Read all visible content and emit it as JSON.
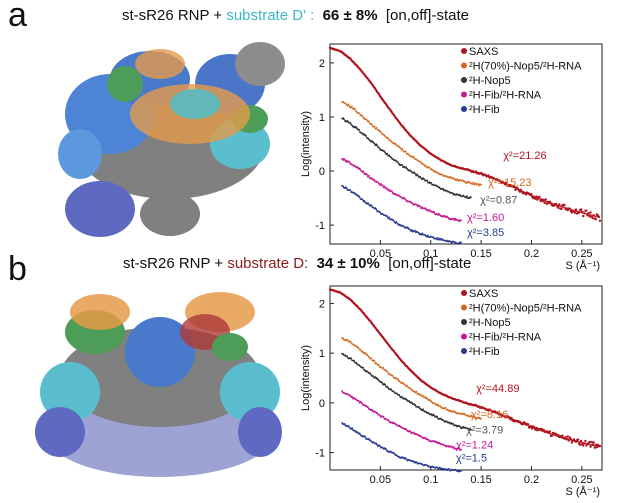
{
  "panels": [
    {
      "letter": "a",
      "title": {
        "prefix": "st-sR26 RNP + ",
        "substrate": "substrate D' :",
        "percent": "66 ± 8%",
        "state": "[on,off]-state"
      },
      "colors": {
        "substrate": "#3ab7c8"
      }
    },
    {
      "letter": "b",
      "title": {
        "prefix": "st-sR26 RNP + ",
        "substrate": "substrate D:",
        "percent": "34 ± 10%",
        "state": "[on,off]-state"
      },
      "colors": {
        "substrate": "#8b1a1a"
      }
    }
  ],
  "chart_data": [
    {
      "type": "scatter",
      "panel": "a",
      "xlabel": "S (Å⁻¹)",
      "ylabel": "Log(intensity)",
      "xlim": [
        0,
        0.27
      ],
      "ylim": [
        -1.35,
        2.35
      ],
      "xticks": [
        0.05,
        0.1,
        0.15,
        0.2,
        0.25
      ],
      "xtick_labels": [
        "0.05",
        "0.1",
        "0.15",
        "0.2",
        "0.25"
      ],
      "yticks": [
        2,
        1,
        0,
        -1
      ],
      "ytick_labels": [
        "2",
        "1",
        "0",
        "-1"
      ],
      "legend_position": "top-right",
      "series": [
        {
          "name": "SAXS",
          "color": "#b0141e",
          "x": [
            0.0,
            0.01,
            0.02,
            0.03,
            0.04,
            0.05,
            0.06,
            0.07,
            0.08,
            0.09,
            0.1,
            0.11,
            0.12,
            0.13,
            0.14,
            0.15,
            0.16,
            0.17,
            0.18,
            0.19,
            0.2,
            0.21,
            0.22,
            0.23,
            0.24,
            0.25,
            0.26,
            0.268
          ],
          "y": [
            2.28,
            2.22,
            2.08,
            1.88,
            1.65,
            1.38,
            1.12,
            0.87,
            0.65,
            0.47,
            0.32,
            0.2,
            0.11,
            0.05,
            0.0,
            -0.05,
            -0.12,
            -0.2,
            -0.28,
            -0.37,
            -0.45,
            -0.53,
            -0.6,
            -0.66,
            -0.72,
            -0.77,
            -0.82,
            -0.86
          ],
          "fit_label": "χ²=21.26"
        },
        {
          "name": "²H(70%)-Nop5/²H-RNA",
          "color": "#d5681f",
          "x": [
            0.012,
            0.02,
            0.03,
            0.04,
            0.05,
            0.06,
            0.07,
            0.08,
            0.09,
            0.1,
            0.11,
            0.12,
            0.13,
            0.14,
            0.15
          ],
          "y": [
            1.28,
            1.2,
            1.05,
            0.88,
            0.72,
            0.56,
            0.42,
            0.28,
            0.16,
            0.04,
            -0.06,
            -0.13,
            -0.18,
            -0.22,
            -0.26
          ],
          "fit_label": "χ²=15.23"
        },
        {
          "name": "²H-Nop5",
          "color": "#333333",
          "x": [
            0.012,
            0.02,
            0.03,
            0.04,
            0.05,
            0.06,
            0.07,
            0.08,
            0.09,
            0.1,
            0.11,
            0.12,
            0.13,
            0.14
          ],
          "y": [
            0.97,
            0.88,
            0.73,
            0.57,
            0.41,
            0.26,
            0.12,
            0.0,
            -0.12,
            -0.23,
            -0.32,
            -0.4,
            -0.46,
            -0.5
          ],
          "fit_label": "χ²=0.87"
        },
        {
          "name": "²H-Fib/²H-RNA",
          "color": "#c41a94",
          "x": [
            0.012,
            0.02,
            0.03,
            0.04,
            0.05,
            0.06,
            0.07,
            0.08,
            0.09,
            0.1,
            0.11,
            0.12,
            0.13
          ],
          "y": [
            0.22,
            0.15,
            0.02,
            -0.12,
            -0.25,
            -0.37,
            -0.48,
            -0.58,
            -0.67,
            -0.75,
            -0.82,
            -0.88,
            -0.93
          ],
          "fit_label": "χ²=1.60"
        },
        {
          "name": "²H-Fib",
          "color": "#2a3b8f",
          "x": [
            0.012,
            0.02,
            0.03,
            0.04,
            0.05,
            0.06,
            0.07,
            0.08,
            0.09,
            0.1,
            0.11,
            0.12,
            0.13
          ],
          "y": [
            -0.28,
            -0.36,
            -0.5,
            -0.64,
            -0.77,
            -0.89,
            -1.0,
            -1.09,
            -1.16,
            -1.22,
            -1.27,
            -1.31,
            -1.34
          ],
          "fit_label": "χ²=3.85"
        }
      ],
      "fit_labels": [
        {
          "text": "χ²=21.26",
          "color": "#b0141e",
          "x": 0.172,
          "y": 0.22
        },
        {
          "text": "χ²=15.23",
          "color": "#d5681f",
          "x": 0.157,
          "y": -0.28
        },
        {
          "text": "χ²=0.87",
          "color": "#555555",
          "x": 0.149,
          "y": -0.6
        },
        {
          "text": "χ²=1.60",
          "color": "#c41a94",
          "x": 0.136,
          "y": -0.92
        },
        {
          "text": "χ²=3.85",
          "color": "#2a3b8f",
          "x": 0.136,
          "y": -1.2
        }
      ]
    },
    {
      "type": "scatter",
      "panel": "b",
      "xlabel": "S (Å⁻¹)",
      "ylabel": "Log(intensity)",
      "xlim": [
        0,
        0.27
      ],
      "ylim": [
        -1.35,
        2.35
      ],
      "xticks": [
        0.05,
        0.1,
        0.15,
        0.2,
        0.25
      ],
      "xtick_labels": [
        "0.05",
        "0.1",
        "0.15",
        "0.2",
        "0.25"
      ],
      "yticks": [
        2,
        1,
        0,
        -1
      ],
      "ytick_labels": [
        "2",
        "1",
        "0",
        "-1"
      ],
      "legend_position": "top-right",
      "series": [
        {
          "name": "SAXS",
          "color": "#b0141e",
          "x": [
            0.0,
            0.01,
            0.02,
            0.03,
            0.04,
            0.05,
            0.06,
            0.07,
            0.08,
            0.09,
            0.1,
            0.11,
            0.12,
            0.13,
            0.14,
            0.15,
            0.16,
            0.17,
            0.18,
            0.19,
            0.2,
            0.21,
            0.22,
            0.23,
            0.24,
            0.25,
            0.26,
            0.268
          ],
          "y": [
            2.28,
            2.22,
            2.08,
            1.88,
            1.64,
            1.38,
            1.12,
            0.87,
            0.65,
            0.46,
            0.31,
            0.19,
            0.1,
            0.03,
            -0.03,
            -0.09,
            -0.16,
            -0.24,
            -0.32,
            -0.4,
            -0.48,
            -0.56,
            -0.63,
            -0.69,
            -0.75,
            -0.8,
            -0.85,
            -0.88
          ],
          "fit_label": "χ²=44.89"
        },
        {
          "name": "²H(70%)-Nop5/²H-RNA",
          "color": "#d5681f",
          "x": [
            0.012,
            0.02,
            0.03,
            0.04,
            0.05,
            0.06,
            0.07,
            0.08,
            0.09,
            0.1,
            0.11,
            0.12,
            0.13,
            0.14,
            0.15
          ],
          "y": [
            1.3,
            1.22,
            1.07,
            0.9,
            0.73,
            0.57,
            0.42,
            0.28,
            0.15,
            0.03,
            -0.08,
            -0.16,
            -0.22,
            -0.27,
            -0.31
          ],
          "fit_label": "χ²=8.16"
        },
        {
          "name": "²H-Nop5",
          "color": "#333333",
          "x": [
            0.012,
            0.02,
            0.03,
            0.04,
            0.05,
            0.06,
            0.07,
            0.08,
            0.09,
            0.1,
            0.11,
            0.12,
            0.13,
            0.14
          ],
          "y": [
            0.98,
            0.89,
            0.74,
            0.58,
            0.42,
            0.27,
            0.13,
            0.0,
            -0.12,
            -0.23,
            -0.33,
            -0.42,
            -0.49,
            -0.54
          ],
          "fit_label": "χ²=3.79"
        },
        {
          "name": "²H-Fib/²H-RNA",
          "color": "#c41a94",
          "x": [
            0.012,
            0.02,
            0.03,
            0.04,
            0.05,
            0.06,
            0.07,
            0.08,
            0.09,
            0.1,
            0.11,
            0.12,
            0.13
          ],
          "y": [
            0.22,
            0.14,
            0.01,
            -0.13,
            -0.26,
            -0.38,
            -0.49,
            -0.59,
            -0.68,
            -0.76,
            -0.83,
            -0.89,
            -0.94
          ],
          "fit_label": "χ²=1.24"
        },
        {
          "name": "²H-Fib",
          "color": "#2a3b8f",
          "x": [
            0.012,
            0.02,
            0.03,
            0.04,
            0.05,
            0.06,
            0.07,
            0.08,
            0.09,
            0.1,
            0.11,
            0.12,
            0.13
          ],
          "y": [
            -0.42,
            -0.5,
            -0.63,
            -0.76,
            -0.88,
            -0.99,
            -1.09,
            -1.17,
            -1.23,
            -1.28,
            -1.32,
            -1.35,
            -1.37
          ],
          "fit_label": "χ²=1.5"
        }
      ],
      "fit_labels": [
        {
          "text": "χ²=44.89",
          "color": "#b0141e",
          "x": 0.145,
          "y": 0.22
        },
        {
          "text": "χ²=8.16",
          "color": "#d5681f",
          "x": 0.14,
          "y": -0.3
        },
        {
          "text": "χ²=3.79",
          "color": "#555555",
          "x": 0.135,
          "y": -0.62
        },
        {
          "text": "χ²=1.24",
          "color": "#c41a94",
          "x": 0.125,
          "y": -0.92
        },
        {
          "text": "χ²=1.5",
          "color": "#2a3b8f",
          "x": 0.125,
          "y": -1.18
        }
      ]
    }
  ]
}
